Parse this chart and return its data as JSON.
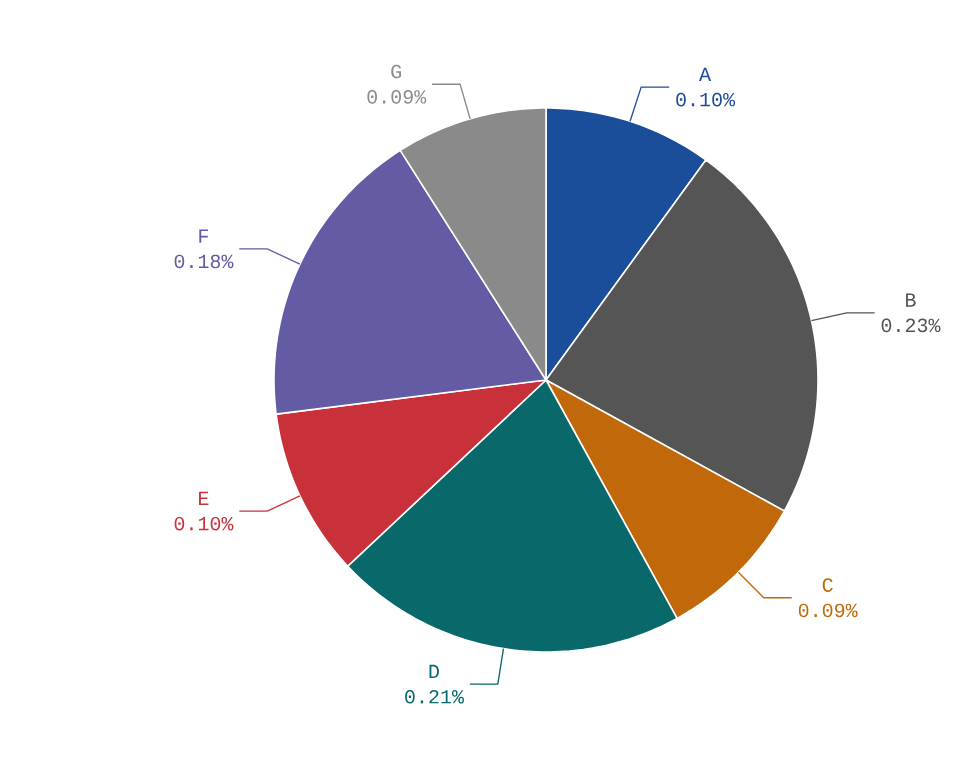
{
  "chart_data": {
    "type": "pie",
    "categories": [
      "A",
      "B",
      "C",
      "D",
      "E",
      "F",
      "G"
    ],
    "values": [
      0.1,
      0.23,
      0.09,
      0.21,
      0.1,
      0.18,
      0.09
    ],
    "value_labels": [
      "0.10%",
      "0.23%",
      "0.09%",
      "0.21%",
      "0.10%",
      "0.18%",
      "0.09%"
    ],
    "colors": [
      "#1a4e9a",
      "#555555",
      "#c0680a",
      "#08686a",
      "#c8303a",
      "#635ba4",
      "#8a8a8a"
    ]
  }
}
